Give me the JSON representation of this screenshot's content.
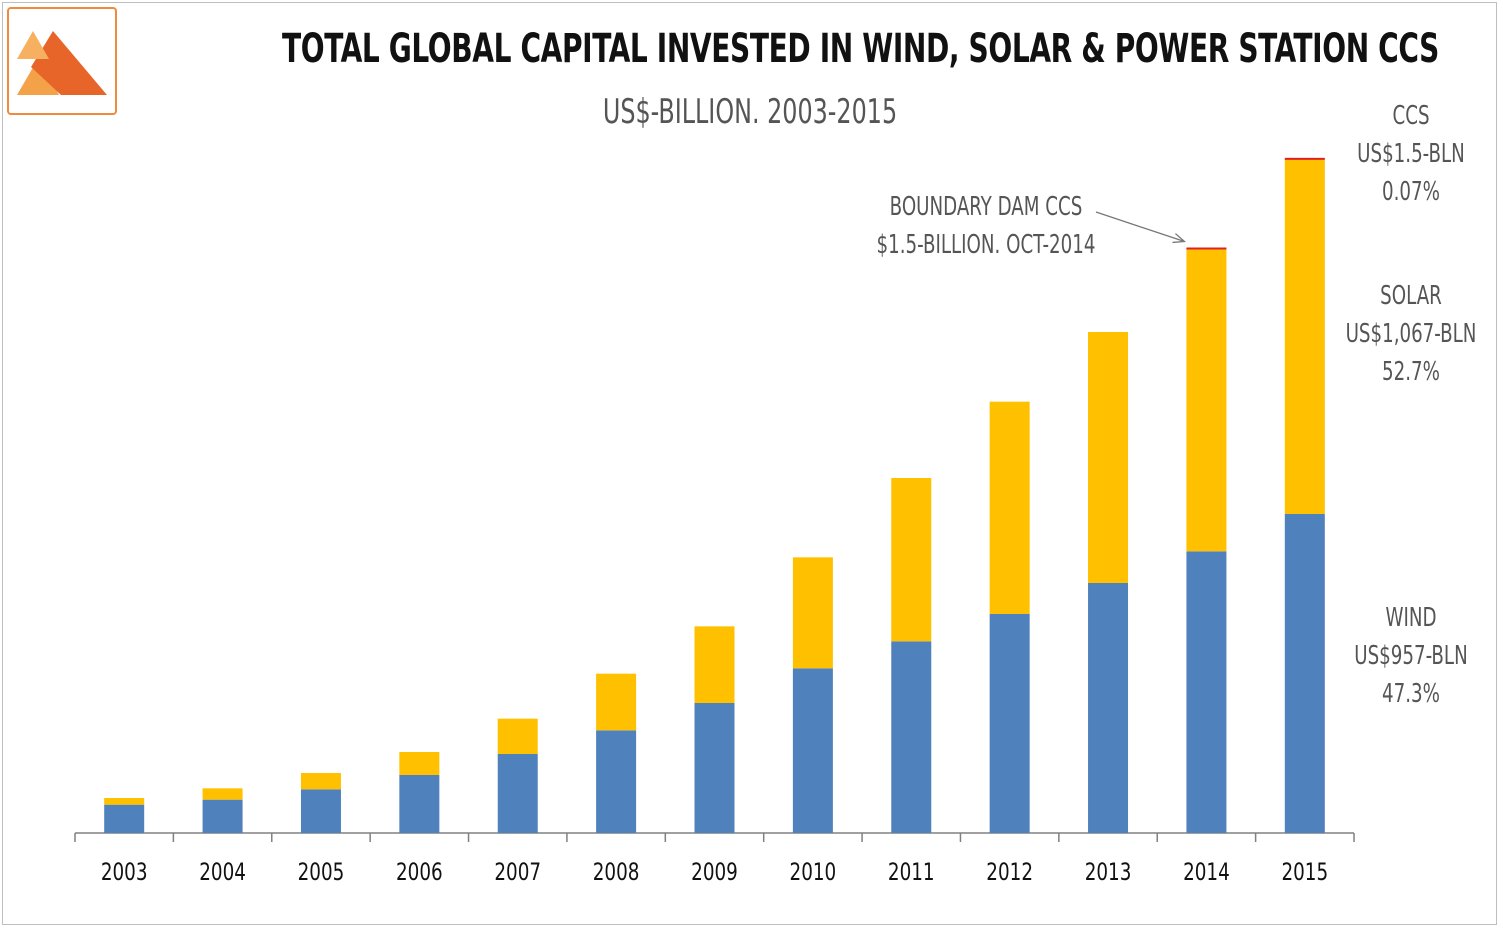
{
  "chart_data": {
    "type": "bar",
    "stacked": true,
    "title": "TOTAL GLOBAL CAPITAL INVESTED IN WIND, SOLAR & POWER STATION CCS",
    "subtitle": "US$-BILLION. 2003-2015",
    "categories": [
      "2003",
      "2004",
      "2005",
      "2006",
      "2007",
      "2008",
      "2009",
      "2010",
      "2011",
      "2012",
      "2013",
      "2014",
      "2015"
    ],
    "series": [
      {
        "name": "WIND",
        "color": "#4f81bd",
        "values": [
          85,
          100,
          131,
          174,
          237,
          308,
          390,
          494,
          575,
          657,
          750,
          845,
          957
        ]
      },
      {
        "name": "SOLAR",
        "color": "#ffc000",
        "values": [
          20,
          34,
          49,
          69,
          106,
          170,
          230,
          333,
          490,
          637,
          753,
          910,
          1067
        ]
      },
      {
        "name": "CCS",
        "color": "#e02020",
        "values": [
          0,
          0,
          0,
          0,
          0,
          0,
          0,
          0,
          0,
          0,
          0,
          1.5,
          1.5
        ]
      }
    ],
    "ylim": [
      0,
      2025
    ],
    "grid": false,
    "legend_labels": [
      {
        "series": "CCS",
        "lines": [
          "CCS",
          "US$1.5-BLN",
          "0.07%"
        ]
      },
      {
        "series": "SOLAR",
        "lines": [
          "SOLAR",
          "US$1,067-BLN",
          "52.7%"
        ]
      },
      {
        "series": "WIND",
        "lines": [
          "WIND",
          "US$957-BLN",
          "47.3%"
        ]
      }
    ],
    "annotation": {
      "lines": [
        "BOUNDARY DAM CCS",
        "$1.5-BILLION. OCT-2014"
      ],
      "target": "2014"
    }
  },
  "logo": {
    "colors": [
      "#f4a24a",
      "#e8652a",
      "#f7c07a"
    ]
  }
}
